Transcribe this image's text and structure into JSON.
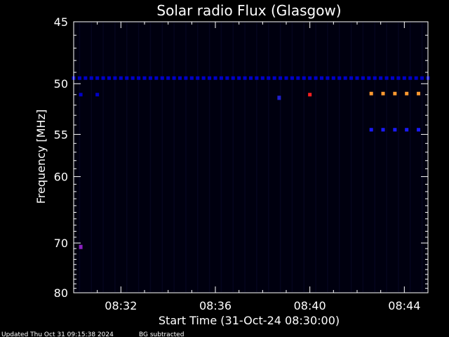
{
  "chart_data": {
    "type": "heatmap",
    "title": "Solar radio Flux (Glasgow)",
    "xlabel": "Start Time (31-Oct-24 08:30:00)",
    "ylabel": "Frequency [MHz]",
    "x_ticks": [
      "08:32",
      "08:36",
      "08:40",
      "08:44"
    ],
    "x_tick_minutes": [
      2,
      6,
      10,
      14
    ],
    "xlim_minutes": [
      0,
      15
    ],
    "y_ticks": [
      45,
      50,
      55,
      60,
      70,
      80
    ],
    "ylim": [
      45,
      80
    ],
    "y_scale": "reciprocal",
    "background_color": "#00000f",
    "features": [
      {
        "kind": "row",
        "freq": 49.5,
        "t_start": 0.0,
        "t_end": 15.0,
        "color": "#0000c8",
        "step": 0.25
      },
      {
        "kind": "row",
        "freq": 51.0,
        "t_start": 10.0,
        "t_end": 10.15,
        "color": "#ff2020",
        "step": 1
      },
      {
        "kind": "row",
        "freq": 50.9,
        "t_start": 12.6,
        "t_end": 15.0,
        "color": "#ff9a30",
        "step": 0.5
      },
      {
        "kind": "row",
        "freq": 54.5,
        "t_start": 12.6,
        "t_end": 15.0,
        "color": "#1a1aff",
        "step": 0.5
      },
      {
        "kind": "row",
        "freq": 51.0,
        "t_start": 0.3,
        "t_end": 1.0,
        "color": "#0000c8",
        "step": 0.7
      },
      {
        "kind": "point",
        "freq": 70.7,
        "t": 0.3,
        "color": "#8a20c0"
      },
      {
        "kind": "point",
        "freq": 51.3,
        "t": 8.7,
        "color": "#2020d0"
      }
    ]
  },
  "footer": {
    "updated": "Updated Thu Oct 31 09:15:38 2024",
    "note": "BG subtracted"
  }
}
